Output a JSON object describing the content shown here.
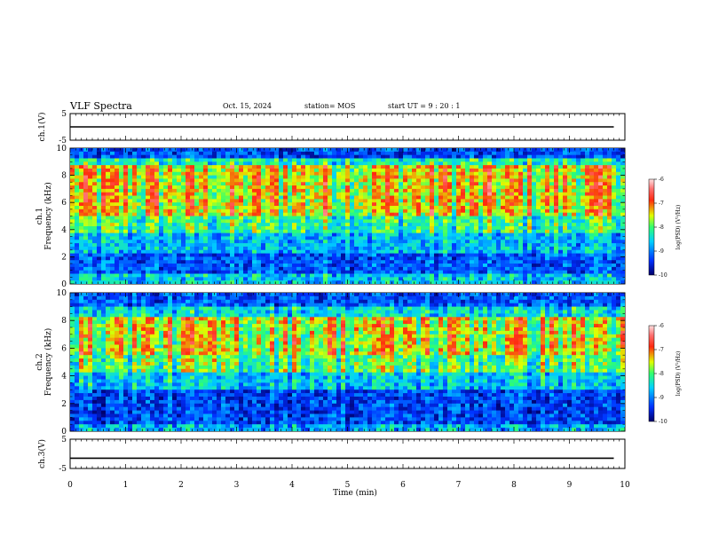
{
  "header": {
    "title": "VLF Spectra",
    "date": "Oct. 15, 2024",
    "station": "station= MOS",
    "start": "start UT =  9 : 20 : 1"
  },
  "chart_data": [
    {
      "type": "line",
      "panel": "ch1-waveform",
      "ylabel": "ch.1(V)",
      "ylim": [
        -5,
        5
      ],
      "yticks": [
        "5",
        "-5"
      ],
      "series": [
        {
          "values": [
            0.0,
            0.0
          ]
        }
      ],
      "x": [
        0,
        9.8
      ]
    },
    {
      "type": "heatmap",
      "panel": "ch1-spectrogram",
      "ylabel": "ch.1\nFrequency (kHz)",
      "ylim": [
        0,
        10
      ],
      "yticks": [
        "0",
        "2",
        "4",
        "6",
        "8",
        "10"
      ],
      "colorbar": {
        "label": "log(PSD) (V²/Hz)",
        "range": [
          -10,
          -6
        ],
        "ticks": [
          "-6",
          "-7",
          "-8",
          "-9",
          "-10"
        ]
      }
    },
    {
      "type": "heatmap",
      "panel": "ch2-spectrogram",
      "ylabel": "ch.2\nFrequency (kHz)",
      "ylim": [
        0,
        10
      ],
      "yticks": [
        "0",
        "2",
        "4",
        "6",
        "8",
        "10"
      ],
      "colorbar": {
        "label": "log(PSD) (V²/Hz)",
        "range": [
          -10,
          -6
        ],
        "ticks": [
          "-6",
          "-7",
          "-8",
          "-9",
          "-10"
        ]
      }
    },
    {
      "type": "line",
      "panel": "ch3-waveform",
      "ylabel": "ch.3(V)",
      "ylim": [
        -5,
        5
      ],
      "yticks": [
        "5",
        "-5"
      ],
      "series": [
        {
          "values": [
            -1.5,
            -1.5
          ]
        }
      ],
      "x": [
        0,
        9.8
      ]
    }
  ],
  "xaxis": {
    "label": "Time (min)",
    "ticks": [
      "0",
      "1",
      "2",
      "3",
      "4",
      "5",
      "6",
      "7",
      "8",
      "9",
      "10"
    ],
    "xlim": [
      0,
      10
    ]
  },
  "colors": {
    "cmap": [
      "#00007a",
      "#0020ff",
      "#00c8ff",
      "#30ff80",
      "#d8ff00",
      "#ff2a10",
      "#ffd8d8"
    ]
  }
}
